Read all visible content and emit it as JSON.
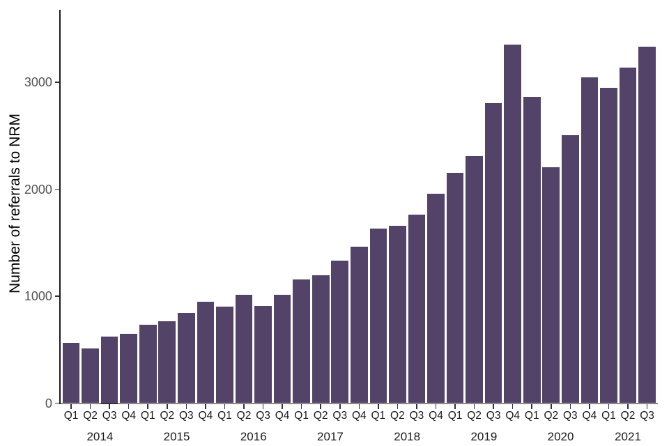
{
  "chart_data": {
    "type": "bar",
    "title": "",
    "xlabel": "",
    "ylabel": "Number of referrals to NRM",
    "ylim": [
      0,
      3680
    ],
    "y_ticks": [
      0,
      1000,
      2000,
      3000
    ],
    "grid": false,
    "legend": false,
    "bar_color": "#544369",
    "axis_line_color": "#1a1a1a",
    "tick_mark_color": "#333333",
    "y_tick_text_color": "#555555",
    "x_tick_text_color": "#1a1a1a",
    "years": [
      "2014",
      "2015",
      "2016",
      "2017",
      "2018",
      "2019",
      "2020",
      "2021"
    ],
    "series": [
      {
        "year": "2014",
        "quarter": "Q1",
        "value": 565
      },
      {
        "year": "2014",
        "quarter": "Q2",
        "value": 510
      },
      {
        "year": "2014",
        "quarter": "Q3",
        "value": 625
      },
      {
        "year": "2014",
        "quarter": "Q4",
        "value": 645
      },
      {
        "year": "2015",
        "quarter": "Q1",
        "value": 730
      },
      {
        "year": "2015",
        "quarter": "Q2",
        "value": 765
      },
      {
        "year": "2015",
        "quarter": "Q3",
        "value": 845
      },
      {
        "year": "2015",
        "quarter": "Q4",
        "value": 945
      },
      {
        "year": "2016",
        "quarter": "Q1",
        "value": 900
      },
      {
        "year": "2016",
        "quarter": "Q2",
        "value": 1010
      },
      {
        "year": "2016",
        "quarter": "Q3",
        "value": 910
      },
      {
        "year": "2016",
        "quarter": "Q4",
        "value": 1010
      },
      {
        "year": "2017",
        "quarter": "Q1",
        "value": 1155
      },
      {
        "year": "2017",
        "quarter": "Q2",
        "value": 1195
      },
      {
        "year": "2017",
        "quarter": "Q3",
        "value": 1330
      },
      {
        "year": "2017",
        "quarter": "Q4",
        "value": 1465
      },
      {
        "year": "2018",
        "quarter": "Q1",
        "value": 1630
      },
      {
        "year": "2018",
        "quarter": "Q2",
        "value": 1655
      },
      {
        "year": "2018",
        "quarter": "Q3",
        "value": 1760
      },
      {
        "year": "2018",
        "quarter": "Q4",
        "value": 1960
      },
      {
        "year": "2019",
        "quarter": "Q1",
        "value": 2150
      },
      {
        "year": "2019",
        "quarter": "Q2",
        "value": 2310
      },
      {
        "year": "2019",
        "quarter": "Q3",
        "value": 2805
      },
      {
        "year": "2019",
        "quarter": "Q4",
        "value": 3350
      },
      {
        "year": "2020",
        "quarter": "Q1",
        "value": 2865
      },
      {
        "year": "2020",
        "quarter": "Q2",
        "value": 2205
      },
      {
        "year": "2020",
        "quarter": "Q3",
        "value": 2505
      },
      {
        "year": "2020",
        "quarter": "Q4",
        "value": 3045
      },
      {
        "year": "2021",
        "quarter": "Q1",
        "value": 2945
      },
      {
        "year": "2021",
        "quarter": "Q2",
        "value": 3135
      },
      {
        "year": "2021",
        "quarter": "Q3",
        "value": 3330
      }
    ]
  }
}
